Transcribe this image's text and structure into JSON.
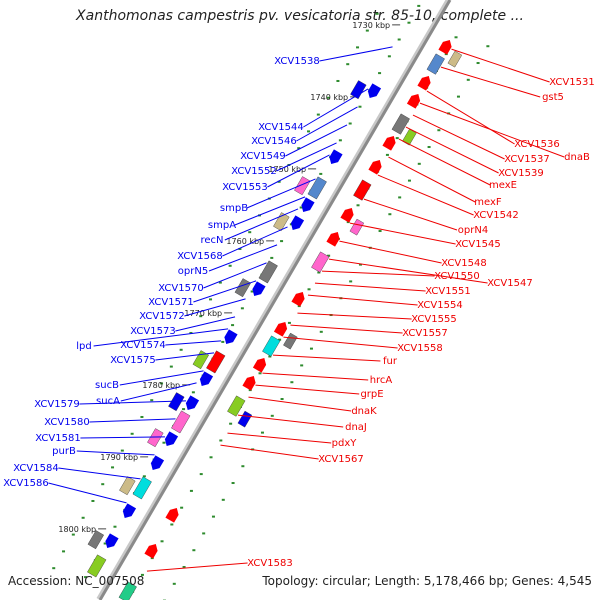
{
  "title": "Xanthomonas campestris pv. vesicatoria str. 85-10, complete ...",
  "footer": {
    "accession": "Accession: NC_007508",
    "topology": "Topology: circular; Length: 5,178,466 bp; Genes: 4,545"
  },
  "colors": {
    "left_label": "#0000ee",
    "right_label": "#ee0000",
    "backbone": "#8a8a8a",
    "tick": "#2e8b2e"
  },
  "kbp_markers": [
    "1730 kbp",
    "1740 kbp",
    "1750 kbp",
    "1760 kbp",
    "1770 kbp",
    "1780 kbp",
    "1790 kbp",
    "1800 kbp"
  ],
  "left_labels": [
    "XCV1538",
    "XCV1544",
    "XCV1546",
    "XCV1549",
    "XCV1552",
    "XCV1553",
    "smpB",
    "smpA",
    "recN",
    "XCV1568",
    "oprN5",
    "XCV1570",
    "XCV1571",
    "XCV1572",
    "XCV1573",
    "lpd",
    "XCV1574",
    "XCV1575",
    "sucB",
    "sucA",
    "XCV1579",
    "XCV1580",
    "XCV1581",
    "purB",
    "XCV1584",
    "XCV1586"
  ],
  "right_labels": [
    "XCV1531",
    "gst5",
    "XCV1536",
    "dnaB",
    "XCV1537",
    "XCV1539",
    "mexE",
    "mexF",
    "XCV1542",
    "oprN4",
    "XCV1545",
    "XCV1548",
    "XCV1547",
    "XCV1550",
    "XCV1551",
    "XCV1554",
    "XCV1555",
    "XCV1557",
    "XCV1558",
    "fur",
    "hrcA",
    "grpE",
    "dnaK",
    "dnaJ",
    "pdxY",
    "XCV1567",
    "XCV1583"
  ]
}
